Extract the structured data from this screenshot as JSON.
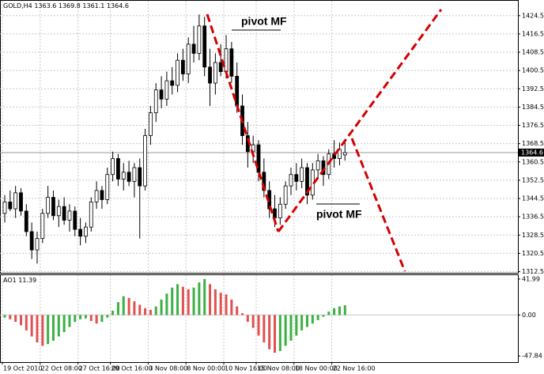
{
  "chart_data": {
    "type": "candlestick",
    "symbol": "GOLD,H4",
    "categories": [
      "19 Oct 2010",
      null,
      null,
      null,
      null,
      null,
      null,
      "22 Oct 08:00",
      null,
      null,
      null,
      null,
      null,
      null,
      "27 Oct 16:00",
      null,
      null,
      null,
      null,
      null,
      "29 Oct 16:00",
      null,
      null,
      null,
      null,
      null,
      null,
      "3 Nov 08:00",
      null,
      null,
      null,
      null,
      null,
      null,
      "8 Nov 00:00",
      null,
      null,
      null,
      null,
      null,
      null,
      "10 Nov 16:00",
      null,
      null,
      null,
      null,
      null,
      "15 Nov 08:00",
      null,
      null,
      null,
      null,
      null,
      null,
      "18 Nov 00:00",
      null,
      null,
      null,
      null,
      null,
      null,
      "22 Nov 16:00",
      null,
      null
    ],
    "open": [
      1338,
      1343,
      1340,
      1347,
      1339,
      1330,
      1322,
      1327,
      1338,
      1345,
      1337,
      1341,
      1335,
      1339,
      1331,
      1328,
      1332,
      1343,
      1348,
      1344,
      1355,
      1362,
      1353,
      1356,
      1352,
      1358,
      1350,
      1372,
      1382,
      1392,
      1388,
      1396,
      1394,
      1405,
      1399,
      1412,
      1408,
      1420,
      1402,
      1395,
      1404,
      1400,
      1410,
      1398,
      1385,
      1372,
      1365,
      1368,
      1356,
      1348,
      1340,
      1336,
      1342,
      1350,
      1355,
      1352,
      1358,
      1346,
      1357,
      1361,
      1355,
      1364,
      1362,
      1363.6
    ],
    "high": [
      1346,
      1348,
      1350,
      1349,
      1342,
      1334,
      1330,
      1340,
      1350,
      1348,
      1344,
      1345,
      1342,
      1341,
      1336,
      1334,
      1345,
      1352,
      1350,
      1358,
      1365,
      1364,
      1360,
      1361,
      1360,
      1362,
      1375,
      1385,
      1395,
      1398,
      1400,
      1402,
      1408,
      1410,
      1415,
      1420,
      1425,
      1424,
      1410,
      1408,
      1412,
      1416,
      1413,
      1404,
      1390,
      1378,
      1372,
      1370,
      1362,
      1352,
      1346,
      1345,
      1352,
      1358,
      1360,
      1362,
      1360,
      1360,
      1364,
      1363,
      1366,
      1370,
      1369,
      1369.8
    ],
    "low": [
      1334,
      1339,
      1336,
      1337,
      1328,
      1318,
      1316,
      1325,
      1336,
      1335,
      1332,
      1333,
      1330,
      1328,
      1324,
      1325,
      1330,
      1340,
      1340,
      1342,
      1352,
      1350,
      1348,
      1350,
      1345,
      1327,
      1348,
      1368,
      1378,
      1384,
      1385,
      1390,
      1391,
      1396,
      1395,
      1404,
      1405,
      1398,
      1385,
      1390,
      1398,
      1397,
      1395,
      1382,
      1368,
      1358,
      1360,
      1352,
      1345,
      1336,
      1332,
      1333,
      1340,
      1346,
      1348,
      1349,
      1342,
      1344,
      1353,
      1350,
      1353,
      1358,
      1359,
      1361.1
    ],
    "close": [
      1343,
      1340,
      1347,
      1339,
      1330,
      1322,
      1327,
      1338,
      1345,
      1337,
      1341,
      1335,
      1339,
      1331,
      1328,
      1332,
      1343,
      1348,
      1344,
      1355,
      1362,
      1353,
      1356,
      1352,
      1358,
      1350,
      1372,
      1382,
      1392,
      1388,
      1396,
      1394,
      1405,
      1399,
      1412,
      1408,
      1420,
      1402,
      1395,
      1404,
      1400,
      1410,
      1398,
      1385,
      1372,
      1365,
      1368,
      1356,
      1348,
      1340,
      1336,
      1342,
      1350,
      1355,
      1352,
      1358,
      1346,
      1357,
      1361,
      1355,
      1364,
      1362,
      1366,
      1364.6
    ],
    "up_color": "#ffffff",
    "down_color": "#000000",
    "ylim": [
      1312,
      1431
    ],
    "yticks": [
      1312.5,
      1320.5,
      1328.5,
      1336.5,
      1344.5,
      1352.5,
      1360.5,
      1368.5,
      1376.5,
      1384.5,
      1392.5,
      1400.5,
      1408.5,
      1416.5,
      1424.5
    ],
    "grid": true,
    "annotations": [
      "pivot MF",
      "pivot MF"
    ],
    "indicator": {
      "type": "histogram",
      "name": "AO1",
      "values": [
        -3,
        -5,
        -8,
        -12,
        -18,
        -25,
        -32,
        -36,
        -34,
        -30,
        -25,
        -20,
        -14,
        -8,
        -5,
        -4,
        -7,
        -10,
        -8,
        -3,
        5,
        15,
        22,
        20,
        16,
        12,
        8,
        6,
        10,
        18,
        25,
        32,
        36,
        33,
        30,
        32,
        38,
        42,
        36,
        30,
        26,
        24,
        18,
        10,
        2,
        -8,
        -15,
        -24,
        -32,
        -40,
        -44,
        -42,
        -36,
        -30,
        -24,
        -18,
        -14,
        -10,
        -6,
        -2,
        4,
        8,
        10,
        11.39
      ],
      "up_color": "#3cb043",
      "down_color": "#e05050",
      "ylim": [
        -55,
        46.5
      ],
      "yticks": [
        41.99,
        {
          "value": 0,
          "label": "0.00"
        },
        -47.84
      ]
    }
  }
}
